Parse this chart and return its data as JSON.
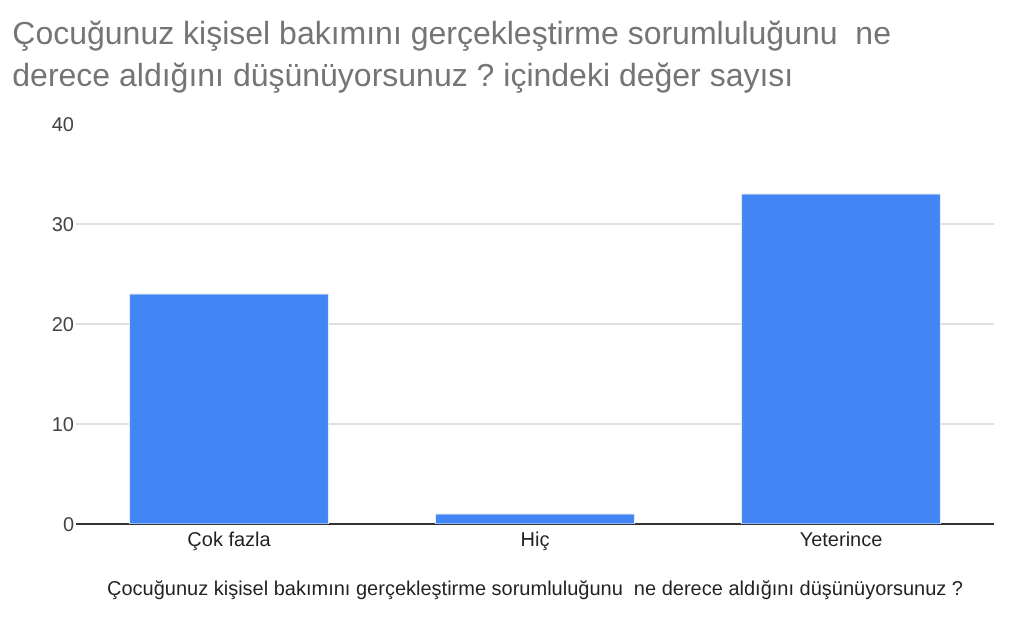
{
  "chart_data": {
    "type": "bar",
    "title": "Çocuğunuz kişisel bakımını gerçekleştirme sorumluluğunu  ne derece aldığını düşünüyorsunuz ? içindeki değer sayısı",
    "xlabel": "Çocuğunuz kişisel bakımını gerçekleştirme sorumluluğunu  ne derece aldığını düşünüyorsunuz ?",
    "categories": [
      "Çok fazla",
      "Hiç",
      "Yeterince"
    ],
    "values": [
      23,
      1,
      33
    ],
    "color": "#4285f4",
    "ylim": [
      0,
      40
    ],
    "yticks": [
      0,
      10,
      20,
      30,
      40
    ],
    "grid": "y"
  }
}
